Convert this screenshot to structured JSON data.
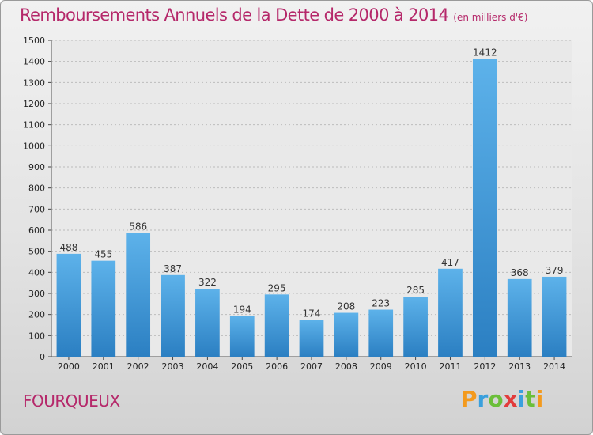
{
  "chart_data": {
    "type": "bar",
    "title": "Remboursements Annuels de la Dette de 2000 à 2014",
    "subtitle": "(en milliers d'€)",
    "categories": [
      "2000",
      "2001",
      "2002",
      "2003",
      "2004",
      "2005",
      "2006",
      "2007",
      "2008",
      "2009",
      "2010",
      "2011",
      "2012",
      "2013",
      "2014"
    ],
    "values": [
      488,
      455,
      586,
      387,
      322,
      194,
      295,
      174,
      208,
      223,
      285,
      417,
      1412,
      368,
      379
    ],
    "ylim": [
      0,
      1500
    ],
    "yticks": [
      0,
      100,
      200,
      300,
      400,
      500,
      600,
      700,
      800,
      900,
      1000,
      1100,
      1200,
      1300,
      1400,
      1500
    ],
    "grid": true,
    "bar_color": "#3d9ad8"
  },
  "commune": "FOURQUEUX",
  "logo": {
    "letters": [
      "P",
      "r",
      "o",
      "x",
      "i",
      "t",
      "i"
    ],
    "colors": [
      "#f39a1e",
      "#3aa0dd",
      "#6bbf3a",
      "#e23c3c",
      "#3aa0dd",
      "#6bbf3a",
      "#f39a1e"
    ]
  }
}
